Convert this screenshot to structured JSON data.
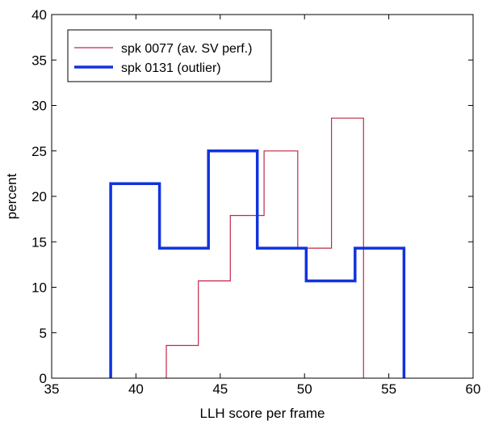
{
  "chart_data": {
    "type": "histogram-step",
    "xlabel": "LLH score per frame",
    "ylabel": "percent",
    "xlim": [
      35,
      60
    ],
    "ylim": [
      0,
      40
    ],
    "xticks": [
      35,
      40,
      45,
      50,
      55,
      60
    ],
    "yticks": [
      0,
      5,
      10,
      15,
      20,
      25,
      30,
      35,
      40
    ],
    "grid": false,
    "legend_position": "top-left",
    "series": [
      {
        "name": "spk 0077 (av. SV perf.)",
        "color": "#c0294a",
        "edges": [
          41.8,
          43.7,
          45.6,
          47.6,
          49.6,
          51.6,
          53.5
        ],
        "values": [
          3.6,
          10.7,
          17.9,
          25.0,
          14.3,
          28.6
        ]
      },
      {
        "name": "spk 0131 (outlier)",
        "color": "#1133dd",
        "edges": [
          38.5,
          41.4,
          44.3,
          47.2,
          50.1,
          53.0,
          55.9
        ],
        "values": [
          21.4,
          14.3,
          25.0,
          14.3,
          10.7,
          14.3
        ]
      }
    ]
  }
}
